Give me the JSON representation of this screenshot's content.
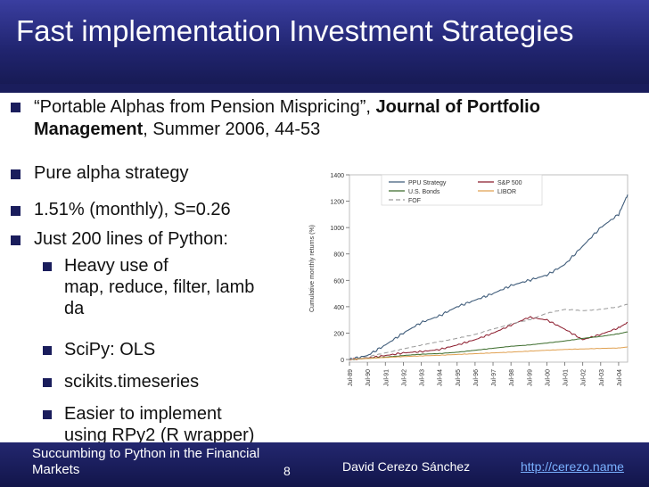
{
  "slide": {
    "title": "Fast implementation Investment Strategies",
    "reference": {
      "prefix": "“Portable Alphas from Pension Mispricing”, ",
      "journal": "Journal of Portfolio Management",
      "suffix": ", Summer 2006, 44-53"
    },
    "bullets": [
      "Pure alpha strategy",
      "1.51% (monthly), S=0.26",
      "Just 200 lines of Python:"
    ],
    "sub_bullets": [
      {
        "lines": [
          "Heavy use of",
          "map, reduce, filter, lamb",
          "da"
        ]
      },
      {
        "lines": [
          "SciPy: OLS"
        ]
      },
      {
        "lines": [
          "scikits.timeseries"
        ]
      },
      {
        "lines": [
          "Easier to implement",
          "using RPy2 (R wrapper)"
        ]
      }
    ],
    "colors": {
      "title_bg": "#20246e",
      "accent": "#1a1d5c",
      "link": "#7ab1ff"
    }
  },
  "footer": {
    "left_text": "Succumbing to Python in the Financial Markets",
    "page": "8",
    "author": "David Cerezo Sánchez",
    "link": "http://cerezo.name"
  },
  "chart_data": {
    "type": "line",
    "ylabel": "Cumulative monthly returns (%)",
    "ylim": [
      -20,
      1400
    ],
    "yticks": [
      0,
      200,
      400,
      600,
      800,
      1000,
      1200,
      1400
    ],
    "x": [
      1989,
      1990,
      1991,
      1992,
      1993,
      1994,
      1995,
      1996,
      1997,
      1998,
      1999,
      2000,
      2001,
      2002,
      2003,
      2004,
      2004.5
    ],
    "x_labels": [
      "Jul-89",
      "Jul-90",
      "Jul-91",
      "Jul-92",
      "Jul-93",
      "Jul-94",
      "Jul-95",
      "Jul-96",
      "Jul-97",
      "Jul-98",
      "Jul-99",
      "Jul-00",
      "Jul-01",
      "Jul-02",
      "Jul-03",
      "Jul-04"
    ],
    "legend_position": "top",
    "series": [
      {
        "name": "PPU Strategy",
        "color": "#3f5c7a",
        "dash": "",
        "values": [
          0,
          30,
          110,
          200,
          280,
          330,
          400,
          450,
          500,
          560,
          600,
          640,
          720,
          860,
          1000,
          1100,
          1250
        ]
      },
      {
        "name": "S&P 500",
        "color": "#8b1a2b",
        "dash": "",
        "values": [
          0,
          10,
          30,
          50,
          60,
          75,
          110,
          150,
          200,
          260,
          320,
          300,
          230,
          150,
          190,
          240,
          280
        ]
      },
      {
        "name": "U.S. Bonds",
        "color": "#3a6b2a",
        "dash": "",
        "values": [
          0,
          8,
          18,
          30,
          40,
          45,
          55,
          70,
          85,
          100,
          110,
          125,
          140,
          160,
          175,
          195,
          210
        ]
      },
      {
        "name": "LIBOR",
        "color": "#e0a050",
        "dash": "",
        "values": [
          0,
          8,
          15,
          22,
          27,
          32,
          38,
          44,
          50,
          56,
          63,
          70,
          76,
          80,
          84,
          87,
          95
        ]
      },
      {
        "name": "FOF",
        "color": "#999999",
        "dash": "5,3",
        "values": [
          0,
          20,
          50,
          80,
          110,
          135,
          160,
          190,
          230,
          270,
          300,
          350,
          380,
          370,
          380,
          400,
          420
        ]
      }
    ]
  }
}
